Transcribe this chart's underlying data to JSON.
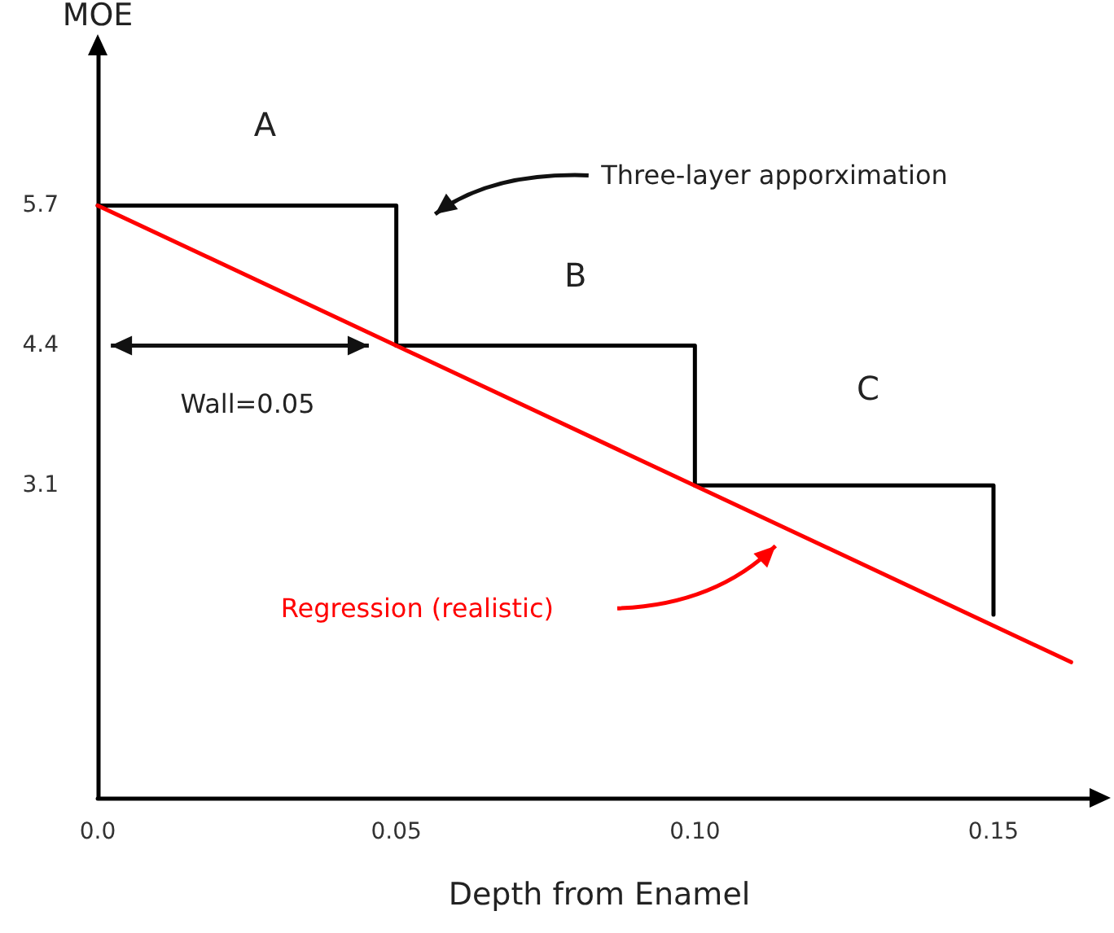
{
  "chart_data": {
    "type": "line",
    "xlabel": "Depth from Enamel",
    "ylabel": "MOE",
    "series": [
      {
        "type": "step",
        "color": "#000000",
        "x": [
          0,
          0.05,
          0.1,
          0.15
        ],
        "values": [
          5.7,
          4.4,
          3.1,
          1.9
        ]
      },
      {
        "color": "#ff0000",
        "x": [
          0,
          0.163
        ],
        "values": [
          5.7,
          1.46
        ]
      }
    ],
    "xlim": [
      0,
      0.168
    ],
    "ylim": [
      0.2,
      7.2
    ],
    "xticks": [
      {
        "value": 0,
        "label": "0.0"
      },
      0.05,
      {
        "value": 0.1,
        "label": "0.10"
      },
      0.15
    ],
    "yticks": [
      3.1,
      4.4,
      5.7
    ],
    "annotations": [
      "A",
      "B",
      "C",
      "Three-layer apporximation",
      "Wall=0.05",
      "Regression (realistic)"
    ],
    "grid": false,
    "marker": "none",
    "line_style": "solid"
  }
}
